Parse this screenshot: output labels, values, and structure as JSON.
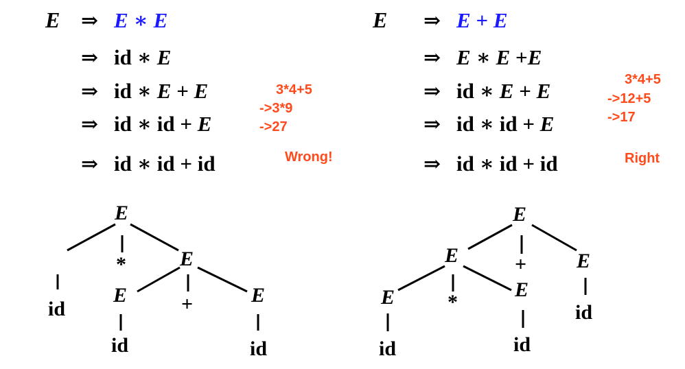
{
  "left": {
    "start_symbol": "E",
    "arrow": "⇒",
    "steps": [
      {
        "parts": [
          {
            "t": "E",
            "i": true,
            "c": "blue"
          },
          {
            "t": " ∗ ",
            "i": false,
            "c": "blue"
          },
          {
            "t": "E",
            "i": true,
            "c": "blue"
          }
        ]
      },
      {
        "parts": [
          {
            "t": "id ∗ ",
            "i": false,
            "c": "black"
          },
          {
            "t": "E",
            "i": true,
            "c": "black"
          }
        ]
      },
      {
        "parts": [
          {
            "t": "id ∗ ",
            "i": false,
            "c": "black"
          },
          {
            "t": "E",
            "i": true,
            "c": "black"
          },
          {
            "t": " + ",
            "i": false,
            "c": "black"
          },
          {
            "t": "E",
            "i": true,
            "c": "black"
          }
        ]
      },
      {
        "parts": [
          {
            "t": "id ∗ id + ",
            "i": false,
            "c": "black"
          },
          {
            "t": "E",
            "i": true,
            "c": "black"
          }
        ]
      },
      {
        "parts": [
          {
            "t": "id ∗ id + id",
            "i": false,
            "c": "black"
          }
        ]
      }
    ],
    "eval_lines": [
      "3*4+5",
      "->3*9",
      "->27"
    ],
    "verdict": "Wrong!"
  },
  "right": {
    "start_symbol": "E",
    "arrow": "⇒",
    "steps": [
      {
        "parts": [
          {
            "t": "E",
            "i": true,
            "c": "blue"
          },
          {
            "t": " + ",
            "i": false,
            "c": "blue"
          },
          {
            "t": "E",
            "i": true,
            "c": "blue"
          }
        ]
      },
      {
        "parts": [
          {
            "t": "E",
            "i": true,
            "c": "black"
          },
          {
            "t": " ∗ ",
            "i": false,
            "c": "black"
          },
          {
            "t": "E",
            "i": true,
            "c": "black"
          },
          {
            "t": " +",
            "i": false,
            "c": "black"
          },
          {
            "t": "E",
            "i": true,
            "c": "black"
          }
        ]
      },
      {
        "parts": [
          {
            "t": "id ∗ ",
            "i": false,
            "c": "black"
          },
          {
            "t": "E",
            "i": true,
            "c": "black"
          },
          {
            "t": " + ",
            "i": false,
            "c": "black"
          },
          {
            "t": "E",
            "i": true,
            "c": "black"
          }
        ]
      },
      {
        "parts": [
          {
            "t": "id ∗ id + ",
            "i": false,
            "c": "black"
          },
          {
            "t": "E",
            "i": true,
            "c": "black"
          }
        ]
      },
      {
        "parts": [
          {
            "t": "id ∗ id + id",
            "i": false,
            "c": "black"
          }
        ]
      }
    ],
    "eval_lines": [
      "3*4+5",
      "->12+5",
      "->17"
    ],
    "verdict": "Right"
  },
  "trees": {
    "left": {
      "root": "E",
      "star": "*",
      "sub": "E",
      "plus": "+",
      "leaf_id_1": "id",
      "e_left": "E",
      "e_right": "E",
      "leaf_id_2": "id",
      "leaf_id_3": "id"
    },
    "right": {
      "root": "E",
      "sub": "E",
      "plus": "+",
      "e_right": "E",
      "e_left": "E",
      "star": "*",
      "e_mid": "E",
      "leaf_id_1": "id",
      "leaf_id_2": "id",
      "leaf_id_3": "id"
    }
  },
  "colors": {
    "blue": "#1a1aff",
    "note": "#ff4a1c",
    "ink": "#000000"
  }
}
